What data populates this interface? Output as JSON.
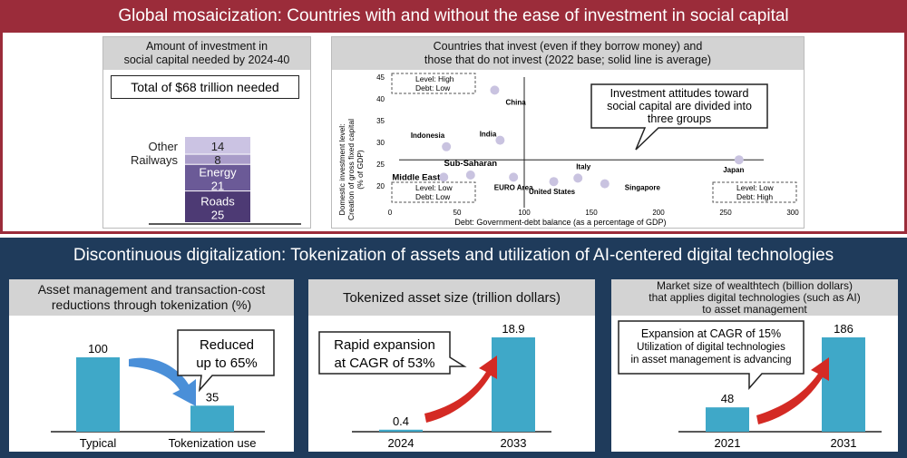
{
  "top_banner": {
    "title": "Global mosaicization: Countries with and without the ease of investment in social capital"
  },
  "bottom_banner": {
    "title": "Discontinuous digitalization: Tokenization of assets and utilization of AI-centered digital technologies"
  },
  "colors": {
    "top_banner": "#9b2c3a",
    "bottom_banner": "#1f3b5b",
    "bar_blue": "#3fa8c8",
    "arrow_red": "#d42a24",
    "arrow_blue": "#4a8fd8",
    "dot": "#c9c3e0"
  },
  "panel1": {
    "header_line1": "Amount of investment in",
    "header_line2": "social capital needed by 2024-40",
    "callout": "Total of $68 trillion needed",
    "chart_data": {
      "type": "bar",
      "stacked": true,
      "unit": "trillion dollars",
      "segments": [
        {
          "label": "Roads",
          "value": 25,
          "color": "#4d3a74"
        },
        {
          "label": "Energy",
          "value": 21,
          "color": "#6b5a97"
        },
        {
          "label": "Railways",
          "value": 8,
          "color": "#a99cc9"
        },
        {
          "label": "Other",
          "value": 14,
          "color": "#cbc3e3"
        }
      ]
    }
  },
  "panel2": {
    "header_line1": "Countries that invest (even if they borrow money) and",
    "header_line2": "those that do not invest (2022 base; solid line is average)",
    "callout_line1": "Investment attitudes toward",
    "callout_line2": "social capital are divided into",
    "callout_line3": "three groups",
    "quad_tl_1": "Level: High",
    "quad_tl_2": "Debt: Low",
    "quad_bl_1": "Level: Low",
    "quad_bl_2": "Debt: Low",
    "quad_br_1": "Level: Low",
    "quad_br_2": "Debt: High",
    "chart_data": {
      "type": "scatter",
      "xlabel": "Debt: Government-debt balance (as a percentage of GDP)",
      "ylabel_line1": "Domestic investment level:",
      "ylabel_line2": "Creation of gross fixed capital",
      "ylabel_line3": "(% of GDP)",
      "xlim": [
        0,
        300
      ],
      "ylim": [
        15,
        45
      ],
      "xticks": [
        0,
        50,
        100,
        150,
        200,
        250,
        300
      ],
      "yticks": [
        20,
        25,
        30,
        35,
        40,
        45
      ],
      "avg_x": 100,
      "avg_y": 26,
      "points": [
        {
          "x": 78,
          "y": 42,
          "label": "China"
        },
        {
          "x": 82,
          "y": 30.5,
          "label": "India"
        },
        {
          "x": 42,
          "y": 29,
          "label": "Indonesia"
        },
        {
          "x": 60,
          "y": 22.5,
          "label": "Sub-Saharan"
        },
        {
          "x": 40,
          "y": 22,
          "label": "Middle East"
        },
        {
          "x": 92,
          "y": 22,
          "label": "EURO Area"
        },
        {
          "x": 122,
          "y": 21,
          "label": "United States"
        },
        {
          "x": 140,
          "y": 21.8,
          "label": "Italy"
        },
        {
          "x": 160,
          "y": 20.5,
          "label": "Singapore"
        },
        {
          "x": 260,
          "y": 26,
          "label": "Japan"
        }
      ]
    }
  },
  "panel3": {
    "header_line1": "Asset management and transaction-cost",
    "header_line2": "reductions through tokenization (%)",
    "callout_line1": "Reduced",
    "callout_line2": "up to 65%",
    "chart_data": {
      "type": "bar",
      "categories": [
        "Typical",
        "Tokenization use"
      ],
      "values": [
        100,
        35
      ],
      "ylim": [
        0,
        100
      ]
    }
  },
  "panel4": {
    "header": "Tokenized asset size (trillion dollars)",
    "callout_line1": "Rapid expansion",
    "callout_line2": "at CAGR of 53%",
    "chart_data": {
      "type": "bar",
      "categories": [
        "2024",
        "2033"
      ],
      "values": [
        0.4,
        18.9
      ],
      "ylim": [
        0,
        18.9
      ]
    }
  },
  "panel5": {
    "header_line1": "Market size of wealthtech (billion dollars)",
    "header_line2": "that applies digital technologies (such as AI)",
    "header_line3": "to asset management",
    "callout_line1": "Expansion at CAGR of 15%",
    "callout_line2": "Utilization of digital technologies",
    "callout_line3": "in asset management is advancing",
    "chart_data": {
      "type": "bar",
      "categories": [
        "2021",
        "2031"
      ],
      "values": [
        48,
        186
      ],
      "ylim": [
        0,
        186
      ]
    }
  }
}
